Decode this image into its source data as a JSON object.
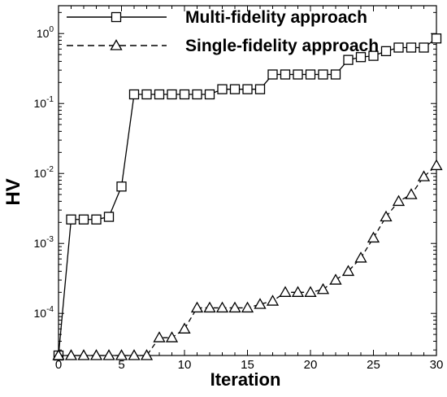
{
  "chart_data": {
    "type": "line",
    "xlabel": "Iteration",
    "ylabel": "HV",
    "xlim": [
      0,
      30
    ],
    "ylim": [
      2.5e-05,
      2.5
    ],
    "y_scale": "log",
    "x_ticks": [
      0,
      5,
      10,
      15,
      20,
      25,
      30
    ],
    "y_ticks": [
      {
        "value": 0.0001,
        "base": "10",
        "exp": "-4"
      },
      {
        "value": 0.001,
        "base": "10",
        "exp": "-3"
      },
      {
        "value": 0.01,
        "base": "10",
        "exp": "-2"
      },
      {
        "value": 0.1,
        "base": "10",
        "exp": "-1"
      },
      {
        "value": 1,
        "base": "10",
        "exp": "0"
      }
    ],
    "grid": false,
    "legend_position": "top",
    "series": [
      {
        "name": "Multi-fidelity approach",
        "line_style": "solid",
        "marker": "square",
        "x": [
          0,
          1,
          2,
          3,
          4,
          5,
          6,
          7,
          8,
          9,
          10,
          11,
          12,
          13,
          14,
          15,
          16,
          17,
          18,
          19,
          20,
          21,
          22,
          23,
          24,
          25,
          26,
          27,
          28,
          29,
          30
        ],
        "y": [
          2.5e-05,
          0.0022,
          0.0022,
          0.0022,
          0.0024,
          0.0065,
          0.135,
          0.135,
          0.135,
          0.135,
          0.135,
          0.135,
          0.135,
          0.16,
          0.16,
          0.16,
          0.16,
          0.26,
          0.26,
          0.26,
          0.26,
          0.26,
          0.26,
          0.42,
          0.46,
          0.48,
          0.56,
          0.63,
          0.63,
          0.63,
          0.85
        ]
      },
      {
        "name": "Single-fidelity approach",
        "line_style": "dashed",
        "marker": "triangle",
        "x": [
          0,
          1,
          2,
          3,
          4,
          5,
          6,
          7,
          8,
          9,
          10,
          11,
          12,
          13,
          14,
          15,
          16,
          17,
          18,
          19,
          20,
          21,
          22,
          23,
          24,
          25,
          26,
          27,
          28,
          29,
          30
        ],
        "y": [
          2.5e-05,
          2.5e-05,
          2.5e-05,
          2.5e-05,
          2.5e-05,
          2.5e-05,
          2.5e-05,
          2.5e-05,
          4.5e-05,
          4.5e-05,
          6e-05,
          0.00012,
          0.00012,
          0.00012,
          0.00012,
          0.00012,
          0.000135,
          0.00015,
          0.0002,
          0.0002,
          0.0002,
          0.00022,
          0.0003,
          0.0004,
          0.00062,
          0.0012,
          0.0024,
          0.004,
          0.005,
          0.009,
          0.013
        ]
      }
    ]
  }
}
